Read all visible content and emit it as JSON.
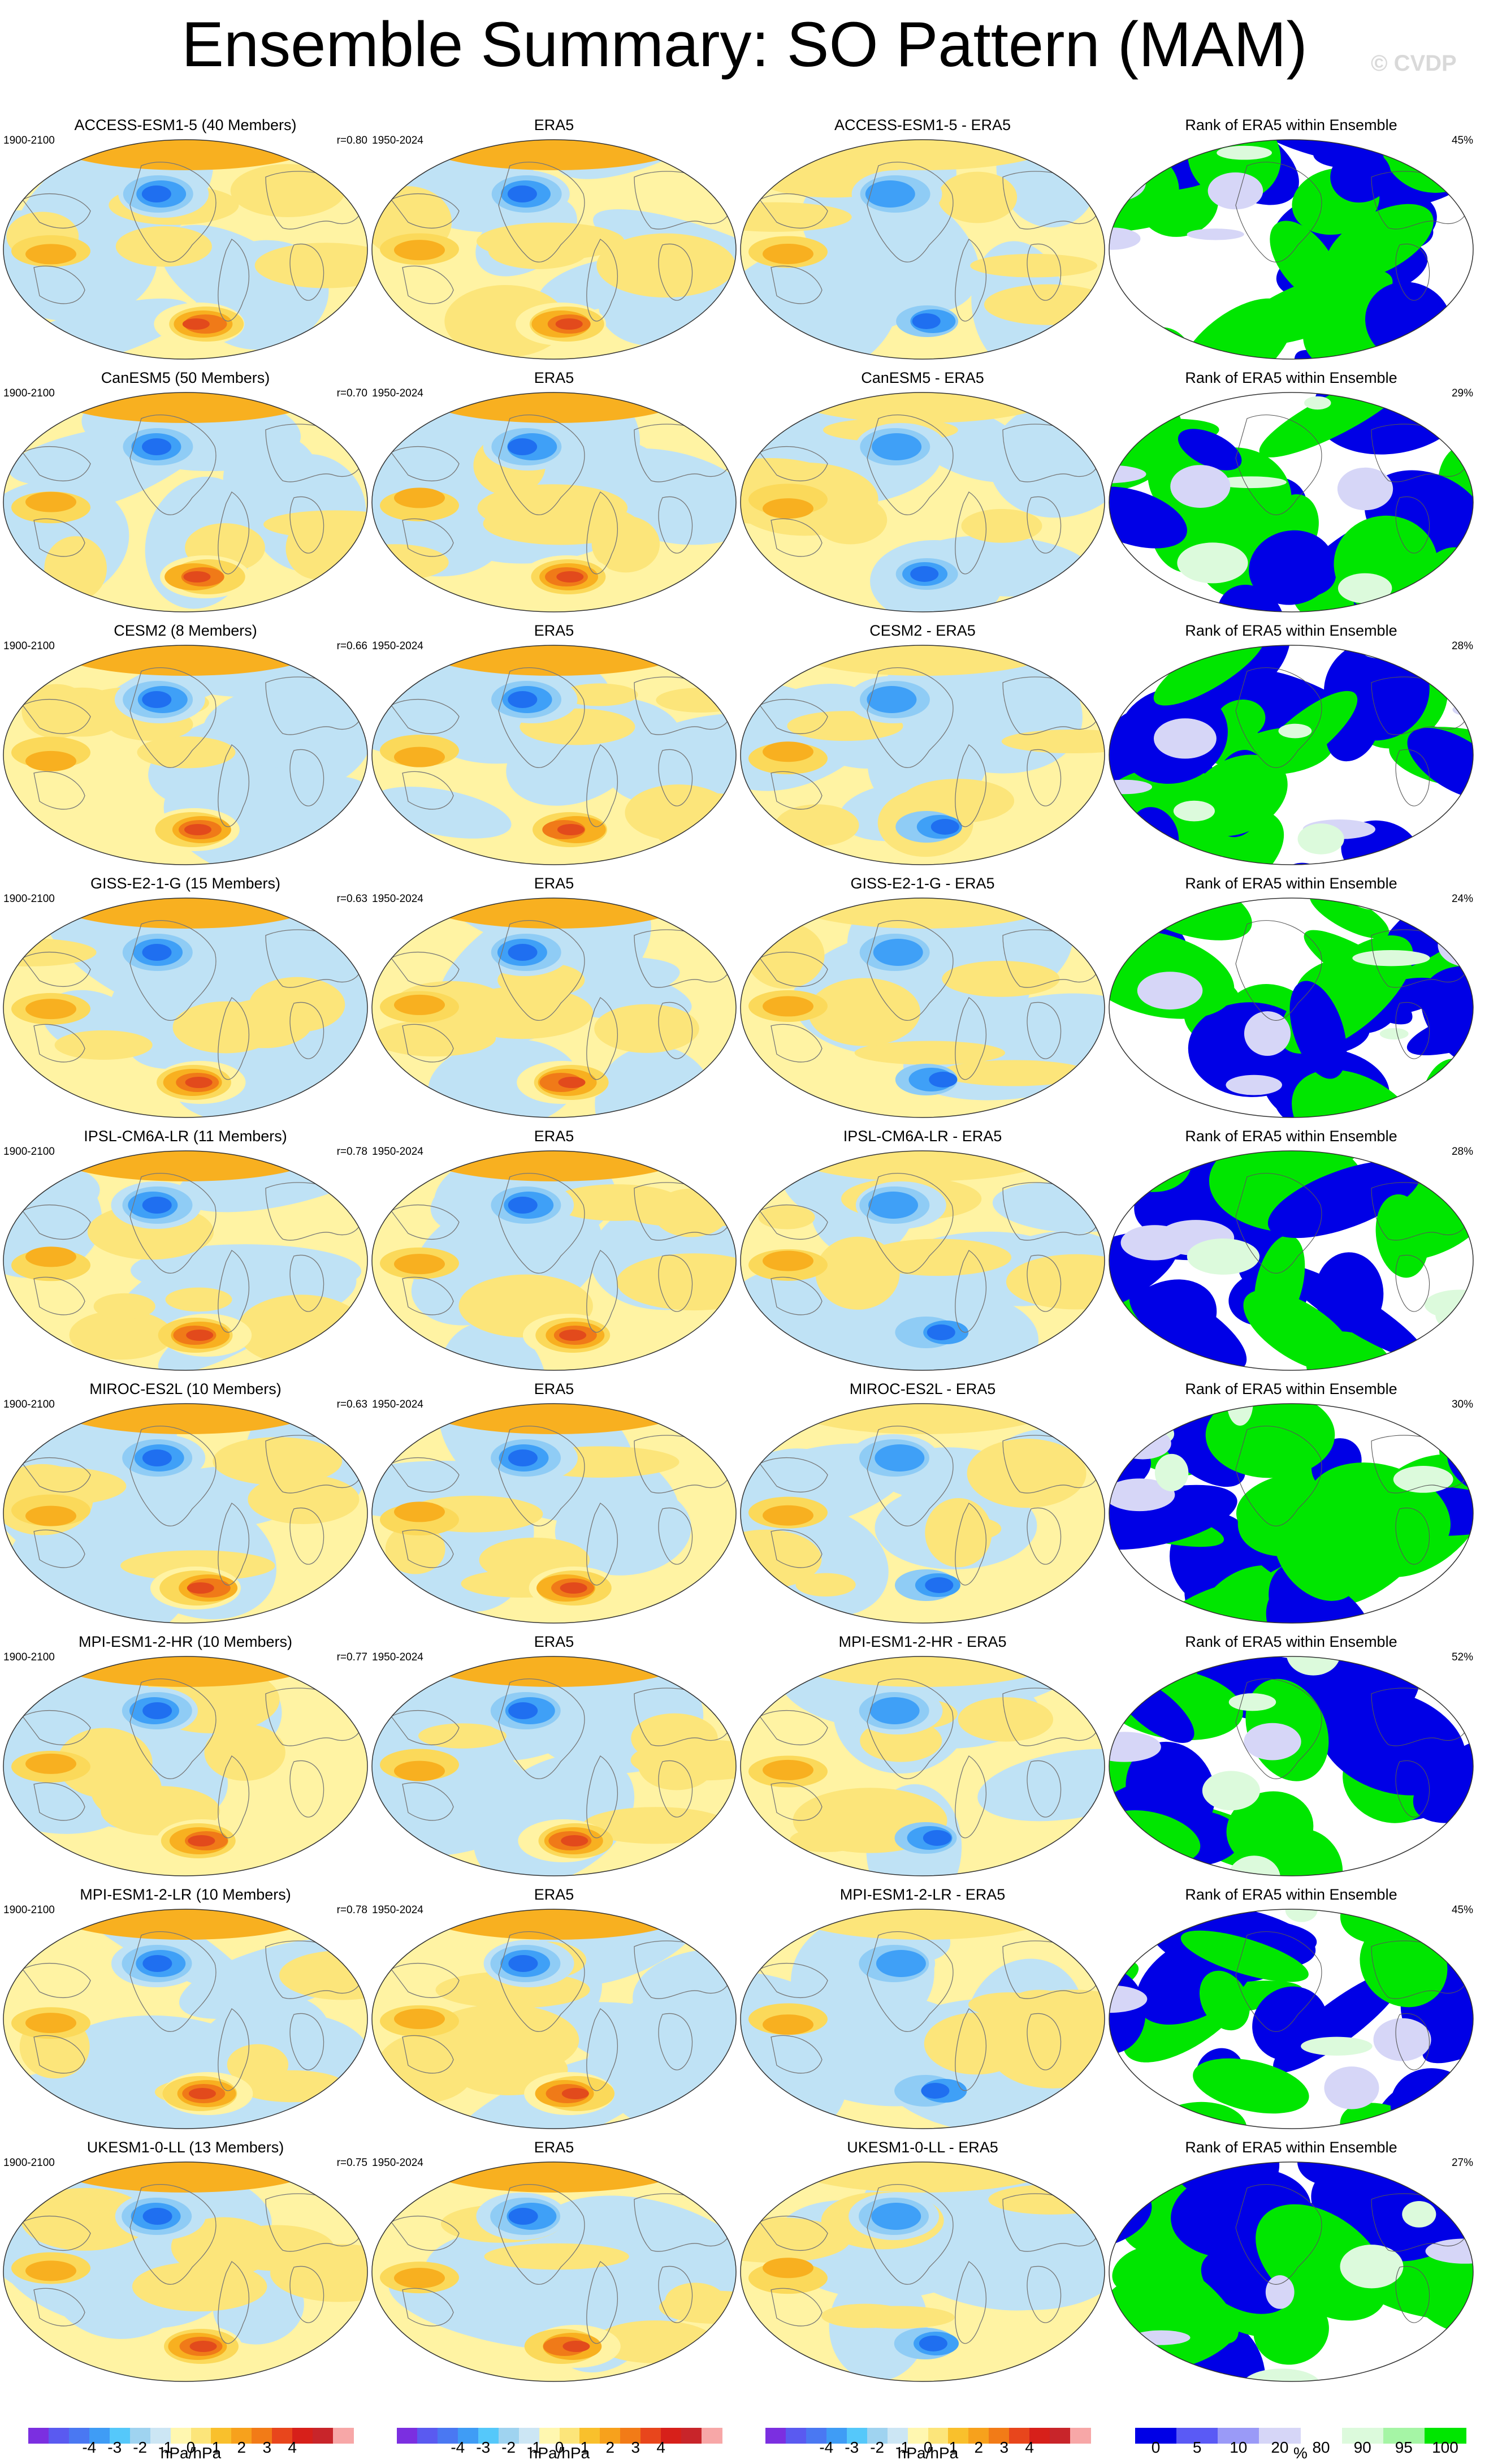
{
  "title": "Ensemble Summary: SO Pattern (MAM)",
  "copyright": "© CVDP",
  "rows": [
    {
      "model": "ACCESS-ESM1-5 (40 Members)",
      "period": "1900-2100",
      "r": "r=0.80",
      "era_period": "1950-2024",
      "era": "ERA5",
      "diff": "ACCESS-ESM1-5 - ERA5",
      "rank_title": "Rank of ERA5 within Ensemble",
      "rank_pct": "45%"
    },
    {
      "model": "CanESM5 (50 Members)",
      "period": "1900-2100",
      "r": "r=0.70",
      "era_period": "1950-2024",
      "era": "ERA5",
      "diff": "CanESM5 - ERA5",
      "rank_title": "Rank of ERA5 within Ensemble",
      "rank_pct": "29%"
    },
    {
      "model": "CESM2 (8 Members)",
      "period": "1900-2100",
      "r": "r=0.66",
      "era_period": "1950-2024",
      "era": "ERA5",
      "diff": "CESM2 - ERA5",
      "rank_title": "Rank of ERA5 within Ensemble",
      "rank_pct": "28%"
    },
    {
      "model": "GISS-E2-1-G (15 Members)",
      "period": "1900-2100",
      "r": "r=0.63",
      "era_period": "1950-2024",
      "era": "ERA5",
      "diff": "GISS-E2-1-G - ERA5",
      "rank_title": "Rank of ERA5 within Ensemble",
      "rank_pct": "24%"
    },
    {
      "model": "IPSL-CM6A-LR (11 Members)",
      "period": "1900-2100",
      "r": "r=0.78",
      "era_period": "1950-2024",
      "era": "ERA5",
      "diff": "IPSL-CM6A-LR - ERA5",
      "rank_title": "Rank of ERA5 within Ensemble",
      "rank_pct": "28%"
    },
    {
      "model": "MIROC-ES2L (10 Members)",
      "period": "1900-2100",
      "r": "r=0.63",
      "era_period": "1950-2024",
      "era": "ERA5",
      "diff": "MIROC-ES2L - ERA5",
      "rank_title": "Rank of ERA5 within Ensemble",
      "rank_pct": "30%"
    },
    {
      "model": "MPI-ESM1-2-HR (10 Members)",
      "period": "1900-2100",
      "r": "r=0.77",
      "era_period": "1950-2024",
      "era": "ERA5",
      "diff": "MPI-ESM1-2-HR - ERA5",
      "rank_title": "Rank of ERA5 within Ensemble",
      "rank_pct": "52%"
    },
    {
      "model": "MPI-ESM1-2-LR (10 Members)",
      "period": "1900-2100",
      "r": "r=0.78",
      "era_period": "1950-2024",
      "era": "ERA5",
      "diff": "MPI-ESM1-2-LR - ERA5",
      "rank_title": "Rank of ERA5 within Ensemble",
      "rank_pct": "45%"
    },
    {
      "model": "UKESM1-0-LL (13 Members)",
      "period": "1900-2100",
      "r": "r=0.75",
      "era_period": "1950-2024",
      "era": "ERA5",
      "diff": "UKESM1-0-LL - ERA5",
      "rank_title": "Rank of ERA5 within Ensemble",
      "rank_pct": "27%"
    }
  ],
  "colorbars": {
    "pattern": {
      "unit": "hPa/hPa",
      "tick_labels": [
        "-4",
        "-3",
        "-2",
        "-1",
        "0",
        "1",
        "2",
        "3",
        "4"
      ],
      "colors": [
        "#7b2fe0",
        "#5a5af0",
        "#4a78f2",
        "#3f9cf5",
        "#55c8fa",
        "#9fd3f0",
        "#cce6f4",
        "#fff7b0",
        "#fce57a",
        "#f9c02c",
        "#f7a11c",
        "#f27b17",
        "#e8461c",
        "#d7201a",
        "#c8252a",
        "#f7a7a7"
      ]
    },
    "rank": {
      "unit": "%",
      "tick_labels": [
        "0",
        "5",
        "10",
        "20",
        "80",
        "90",
        "95",
        "100"
      ],
      "colors": [
        "#0000e6",
        "#5a5af5",
        "#9a9af7",
        "#d6d6f7",
        "#ffffff",
        "#dcfadc",
        "#a5f5a5",
        "#00e600"
      ]
    }
  },
  "map_colors": {
    "land_outline": "#777777",
    "rank_low": "#0000e6",
    "rank_high": "#00e600",
    "rank_mid_low": "#d6d6f7",
    "rank_mid_high": "#dcfadc"
  }
}
